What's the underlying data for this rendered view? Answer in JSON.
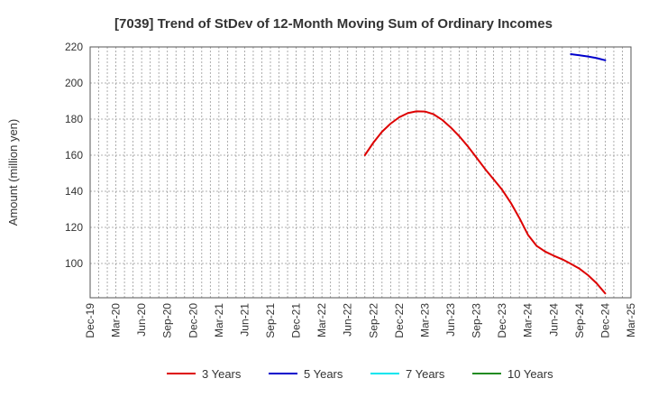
{
  "chart_data": {
    "type": "line",
    "title": "[7039]  Trend of StDev of 12-Month Moving Sum of Ordinary Incomes",
    "xlabel": "",
    "ylabel": "Amount (million yen)",
    "ylim": [
      81,
      220
    ],
    "yticks": [
      100,
      120,
      140,
      160,
      180,
      200,
      220
    ],
    "grid": true,
    "legend_position": "bottom",
    "x_tick_labels": [
      "Dec-19",
      "Mar-20",
      "Jun-20",
      "Sep-20",
      "Dec-20",
      "Mar-21",
      "Jun-21",
      "Sep-21",
      "Dec-21",
      "Mar-22",
      "Jun-22",
      "Sep-22",
      "Dec-22",
      "Mar-23",
      "Jun-23",
      "Sep-23",
      "Dec-23",
      "Mar-24",
      "Jun-24",
      "Sep-24",
      "Dec-24",
      "Mar-25"
    ],
    "series": [
      {
        "name": "3 Years",
        "color": "#dd0000",
        "x": [
          "Aug-22",
          "Sep-22",
          "Oct-22",
          "Nov-22",
          "Dec-22",
          "Jan-23",
          "Feb-23",
          "Mar-23",
          "Apr-23",
          "May-23",
          "Jun-23",
          "Jul-23",
          "Aug-23",
          "Sep-23",
          "Oct-23",
          "Nov-23",
          "Dec-23",
          "Jan-24",
          "Feb-24",
          "Mar-24",
          "Apr-24",
          "May-24",
          "Jun-24",
          "Jul-24",
          "Aug-24",
          "Sep-24",
          "Oct-24",
          "Nov-24",
          "Dec-24"
        ],
        "values": [
          160,
          167,
          173,
          177.5,
          181,
          183.3,
          184.3,
          184.2,
          182.7,
          179.6,
          175.4,
          170.5,
          164.9,
          158.7,
          152.4,
          146.6,
          140.8,
          133.6,
          125.2,
          115.9,
          109.8,
          106.6,
          104.3,
          102.3,
          99.8,
          97.1,
          93.5,
          89.0,
          83.4
        ]
      },
      {
        "name": "5 Years",
        "color": "#0000cc",
        "x": [
          "Aug-24",
          "Sep-24",
          "Oct-24",
          "Nov-24",
          "Dec-24"
        ],
        "values": [
          216,
          215.4,
          214.7,
          213.8,
          212.6
        ]
      },
      {
        "name": "7 Years",
        "color": "#00e5ee",
        "x": [],
        "values": []
      },
      {
        "name": "10 Years",
        "color": "#228b22",
        "x": [],
        "values": []
      }
    ]
  }
}
